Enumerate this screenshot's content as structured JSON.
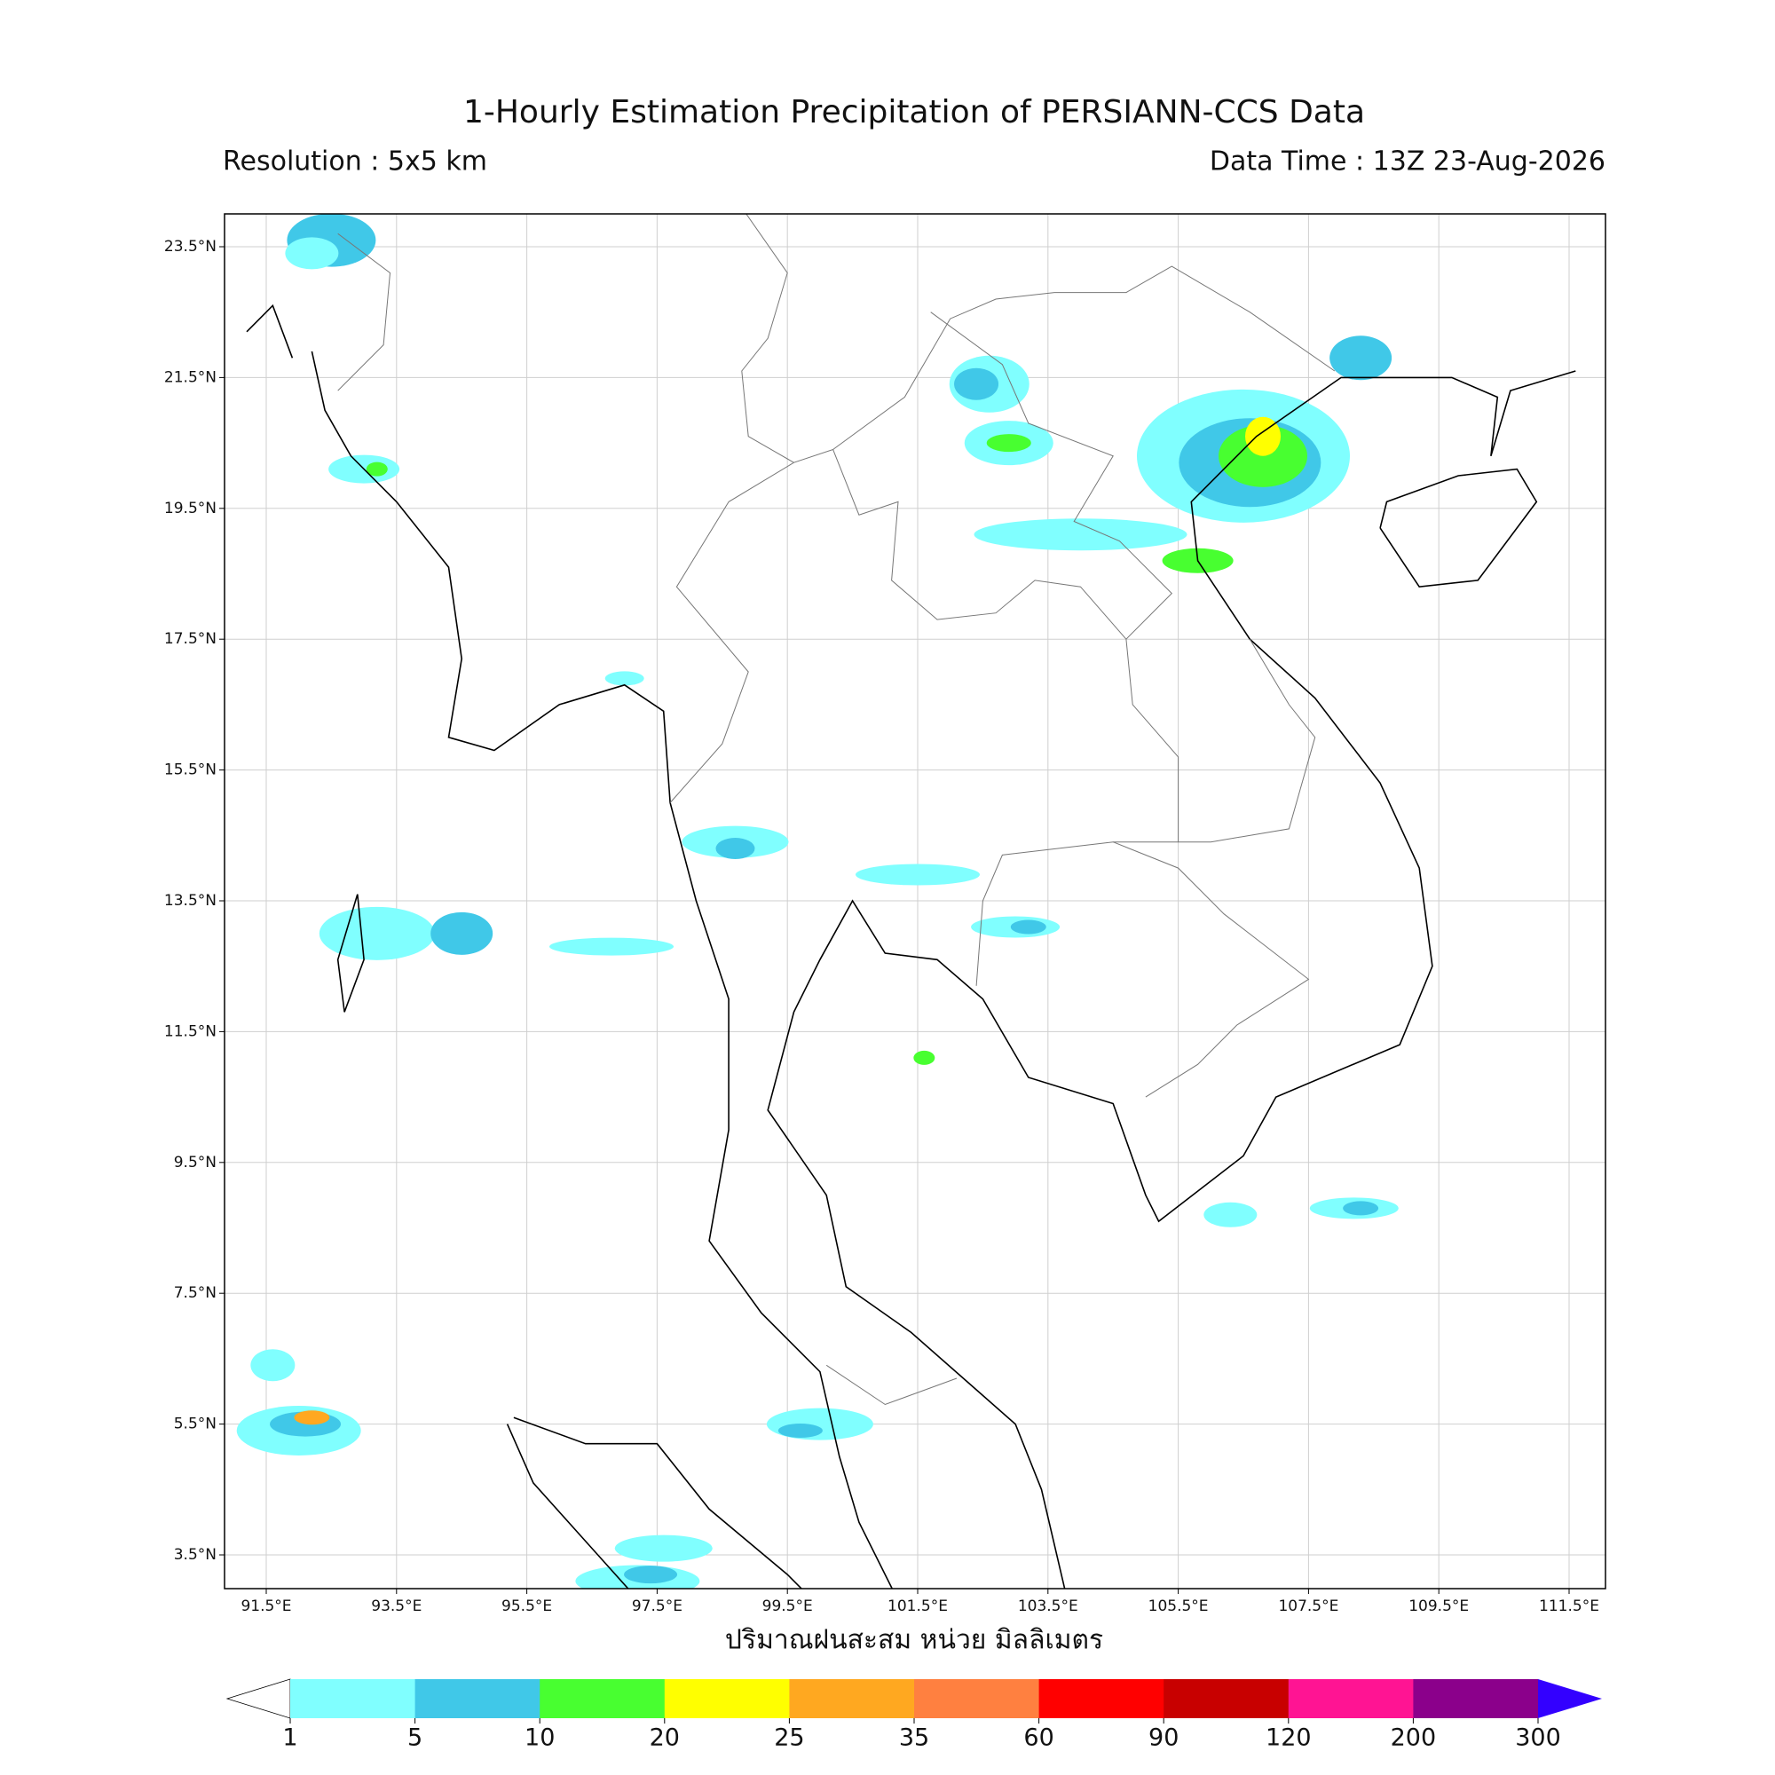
{
  "header": {
    "title": "1-Hourly Estimation Precipitation of PERSIANN-CCS Data",
    "resolution": "Resolution : 5x5 km",
    "data_time": "Data Time : 13Z 23-Aug-2026"
  },
  "map": {
    "lat_labels": [
      "23.5°N",
      "21.5°N",
      "19.5°N",
      "17.5°N",
      "15.5°N",
      "13.5°N",
      "11.5°N",
      "9.5°N",
      "7.5°N",
      "5.5°N",
      "3.5°N"
    ],
    "lon_labels": [
      "91.5°E",
      "93.5°E",
      "95.5°E",
      "97.5°E",
      "99.5°E",
      "101.5°E",
      "103.5°E",
      "105.5°E",
      "107.5°E",
      "109.5°E",
      "111.5°E"
    ],
    "unit_label": "ปริมาณฝนสะสม หน่วย มิลลิเมตร"
  },
  "colorbar": {
    "levels": [
      1,
      5,
      10,
      20,
      25,
      35,
      60,
      90,
      120,
      200,
      300
    ],
    "colors": [
      "#80ffff",
      "#40c8e8",
      "#48ff30",
      "#ffff00",
      "#ffa820",
      "#ff8040",
      "#ff0000",
      "#c80000",
      "#ff1493",
      "#8b008b"
    ],
    "under_color": "#ffffff",
    "over_color": "#3300ff"
  }
}
